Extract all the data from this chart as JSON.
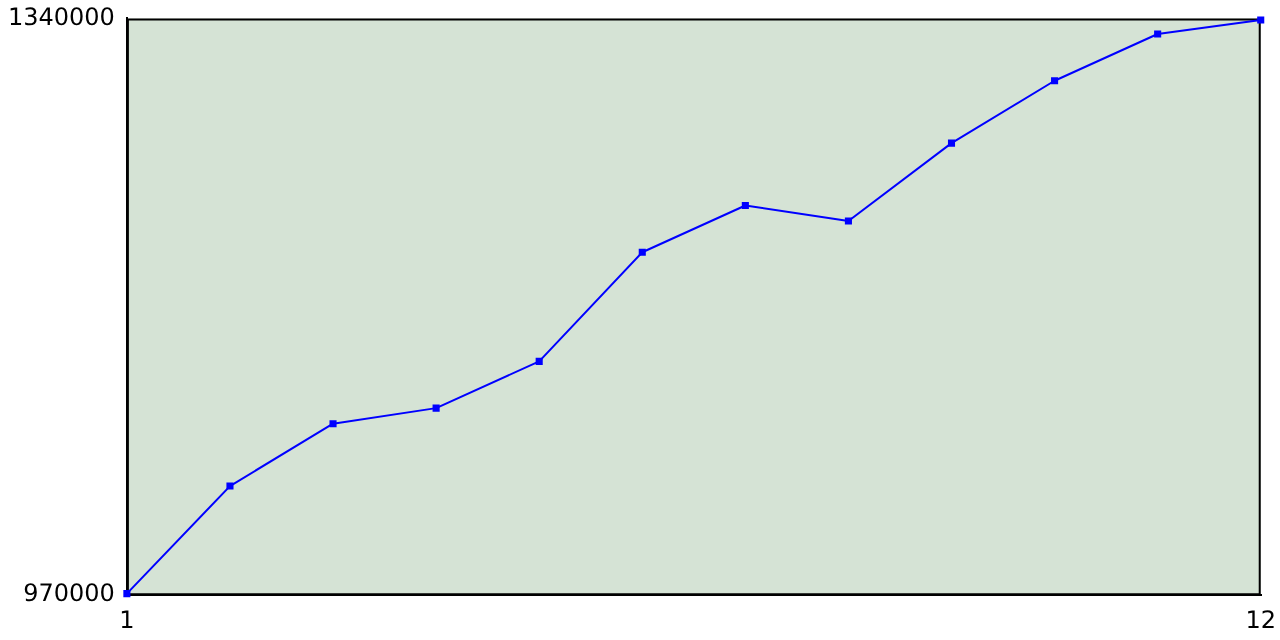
{
  "chart_data": {
    "type": "line",
    "x": [
      1,
      2,
      3,
      4,
      5,
      6,
      7,
      8,
      9,
      10,
      11,
      12
    ],
    "series": [
      {
        "color": "#0000ff",
        "values": [
          971000,
          1040000,
          1080000,
          1090000,
          1120000,
          1190000,
          1220000,
          1210000,
          1260000,
          1300000,
          1330000,
          1339000
        ]
      }
    ],
    "xlim": [
      1,
      12
    ],
    "xticks": [
      1,
      12
    ],
    "ylim": [
      970000,
      1340000
    ],
    "yticks": [
      970000,
      1340000
    ],
    "grid": false,
    "legend": false,
    "marker": "square",
    "line_style": "solid"
  }
}
